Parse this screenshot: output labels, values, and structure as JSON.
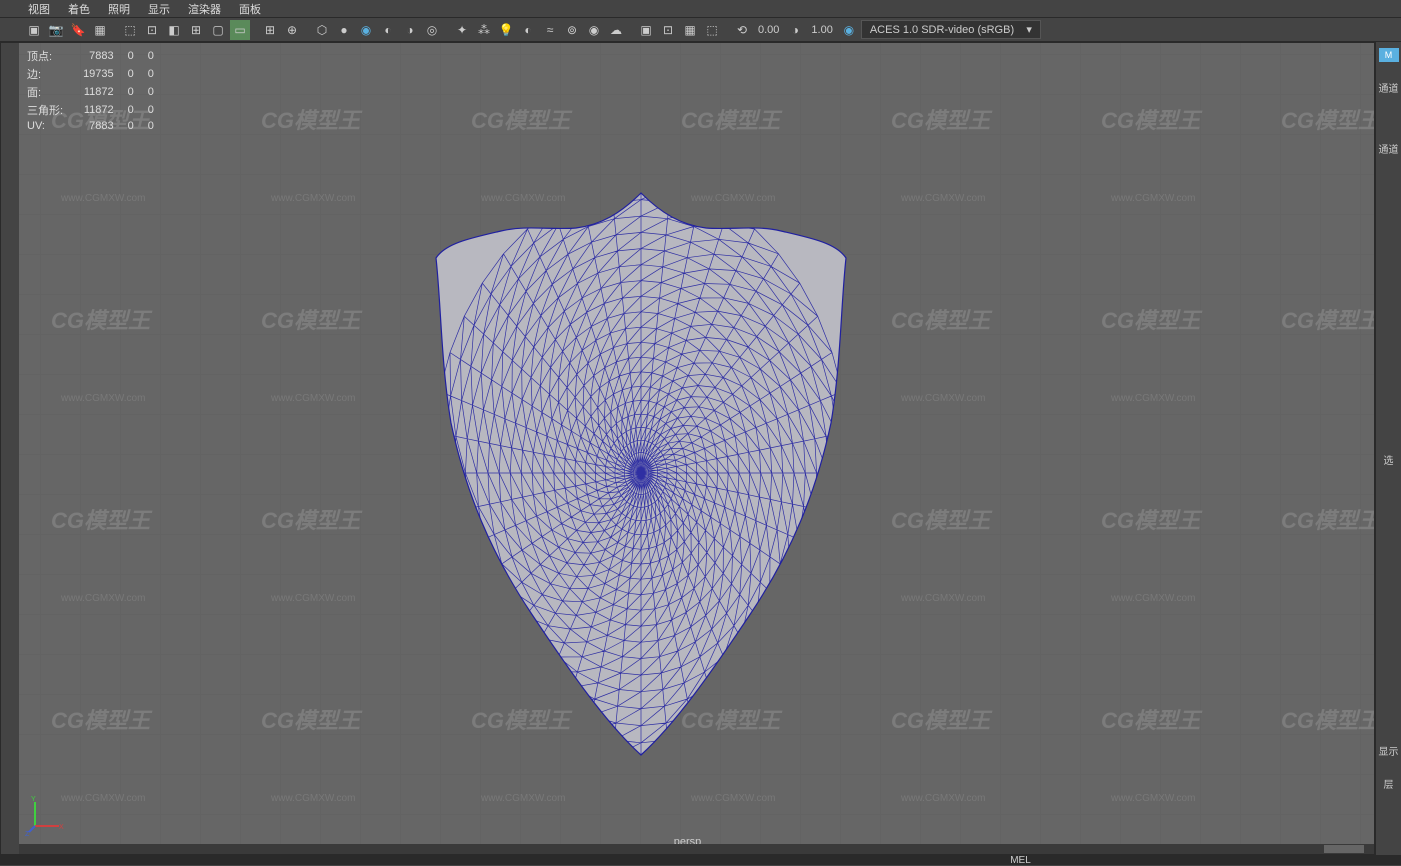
{
  "menubar": {
    "items": [
      "视图",
      "着色",
      "照明",
      "显示",
      "渲染器",
      "面板"
    ]
  },
  "toolbar": {
    "val1": "0.00",
    "val2": "1.00",
    "colorspace": "ACES 1.0 SDR-video (sRGB)"
  },
  "stats": {
    "rows": [
      {
        "label": "顶点:",
        "c1": "7883",
        "c2": "0",
        "c3": "0"
      },
      {
        "label": "边:",
        "c1": "19735",
        "c2": "0",
        "c3": "0"
      },
      {
        "label": "面:",
        "c1": "11872",
        "c2": "0",
        "c3": "0"
      },
      {
        "label": "三角形:",
        "c1": "11872",
        "c2": "0",
        "c3": "0"
      },
      {
        "label": "UV:",
        "c1": "7883",
        "c2": "0",
        "c3": "0"
      }
    ]
  },
  "viewport": {
    "camera": "persp",
    "bg_color": "#666666",
    "grid_color": "#5e5e5e",
    "mesh_fill": "#b8b8c0",
    "mesh_wire": "#2020a0"
  },
  "right_panel": {
    "tab_icon": "M",
    "tab_label1": "通道",
    "tab_label2": "通道",
    "tab_label3": "选",
    "tab_label4": "显示",
    "tab_label5": "层"
  },
  "watermark": {
    "logo": "CG模型王",
    "url": "www.CGMXW.com"
  },
  "bottom": {
    "label": "MEL"
  }
}
